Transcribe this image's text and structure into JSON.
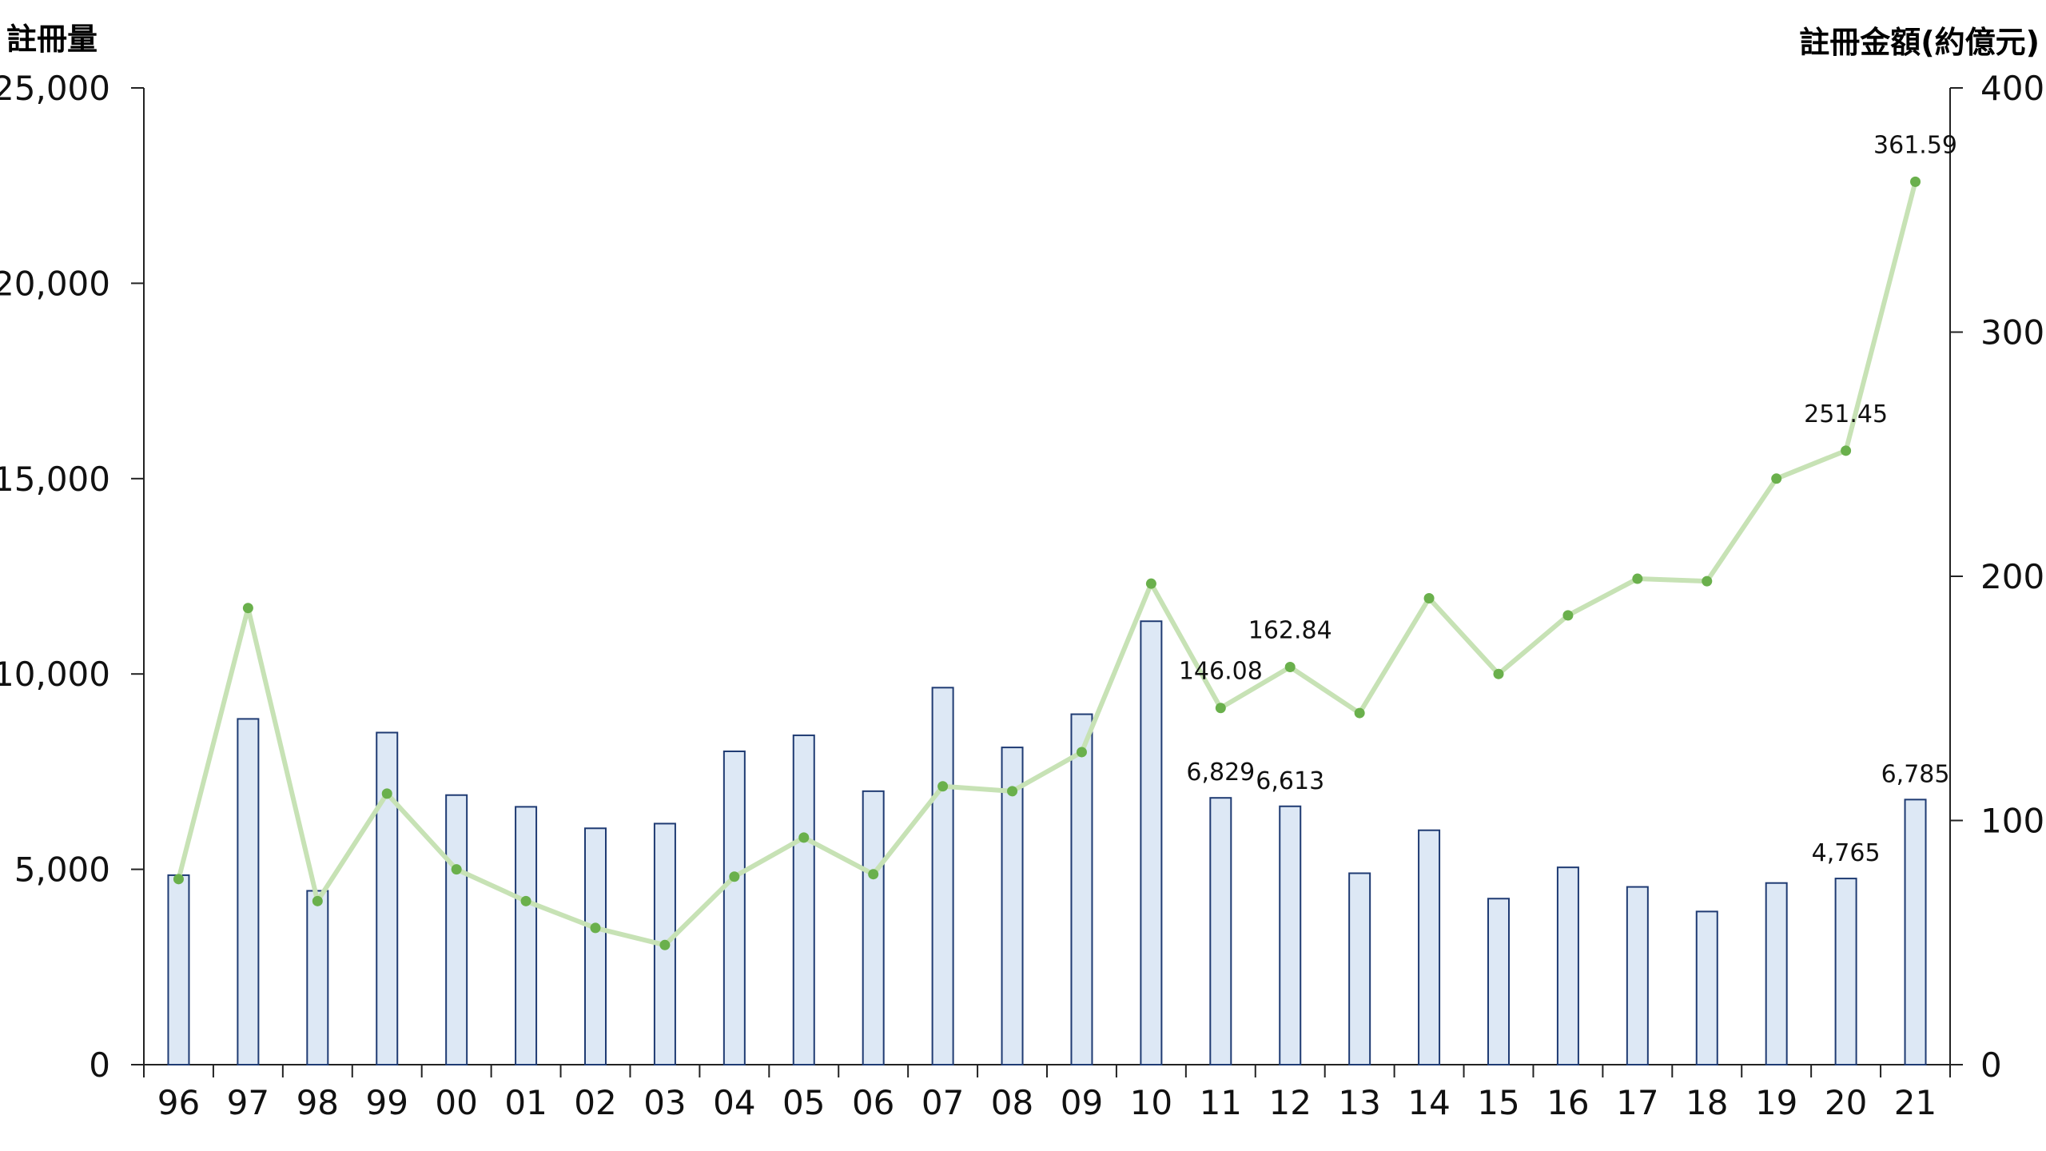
{
  "chart_data": {
    "type": "bar",
    "left_axis_title": "註冊量",
    "right_axis_title": "註冊金額(約億元)",
    "categories": [
      "96",
      "97",
      "98",
      "99",
      "00",
      "01",
      "02",
      "03",
      "04",
      "05",
      "06",
      "07",
      "08",
      "09",
      "10",
      "11",
      "12",
      "13",
      "14",
      "15",
      "16",
      "17",
      "18",
      "19",
      "20",
      "21"
    ],
    "y_ticks": [
      "0",
      "5,000",
      "10,000",
      "15,000",
      "20,000",
      "25,000"
    ],
    "y2_ticks": [
      "0",
      "100",
      "200",
      "300",
      "400"
    ],
    "ylim": [
      0,
      25000
    ],
    "y2lim": [
      0,
      400
    ],
    "series": [
      {
        "type": "bar",
        "axis": "left",
        "values": [
          4850,
          8850,
          4450,
          8500,
          6900,
          6600,
          6050,
          6170,
          8020,
          8430,
          7000,
          9650,
          8120,
          8970,
          11350,
          6829,
          6613,
          4900,
          6000,
          4250,
          5050,
          4550,
          3920,
          4650,
          4765,
          6785
        ],
        "fill": "#dde8f5",
        "stroke": "#1f3b73"
      },
      {
        "type": "line",
        "axis": "right",
        "values": [
          76,
          187,
          67,
          111,
          80,
          67,
          56,
          49,
          77,
          93,
          78,
          114,
          112,
          128,
          197,
          146.08,
          162.84,
          144,
          191,
          160,
          184,
          199,
          198,
          240,
          251.45,
          361.59
        ],
        "line_color": "#c7e2b5",
        "marker_color": "#6ab04c"
      }
    ],
    "bar_value_labels": [
      {
        "index": 15,
        "text": "6,829"
      },
      {
        "index": 16,
        "text": "6,613"
      },
      {
        "index": 24,
        "text": "4,765"
      },
      {
        "index": 25,
        "text": "6,785"
      }
    ],
    "line_value_labels": [
      {
        "index": 15,
        "text": "146.08"
      },
      {
        "index": 16,
        "text": "162.84"
      },
      {
        "index": 24,
        "text": "251.45"
      },
      {
        "index": 25,
        "text": "361.59"
      }
    ],
    "legend": "none",
    "grid": false
  }
}
